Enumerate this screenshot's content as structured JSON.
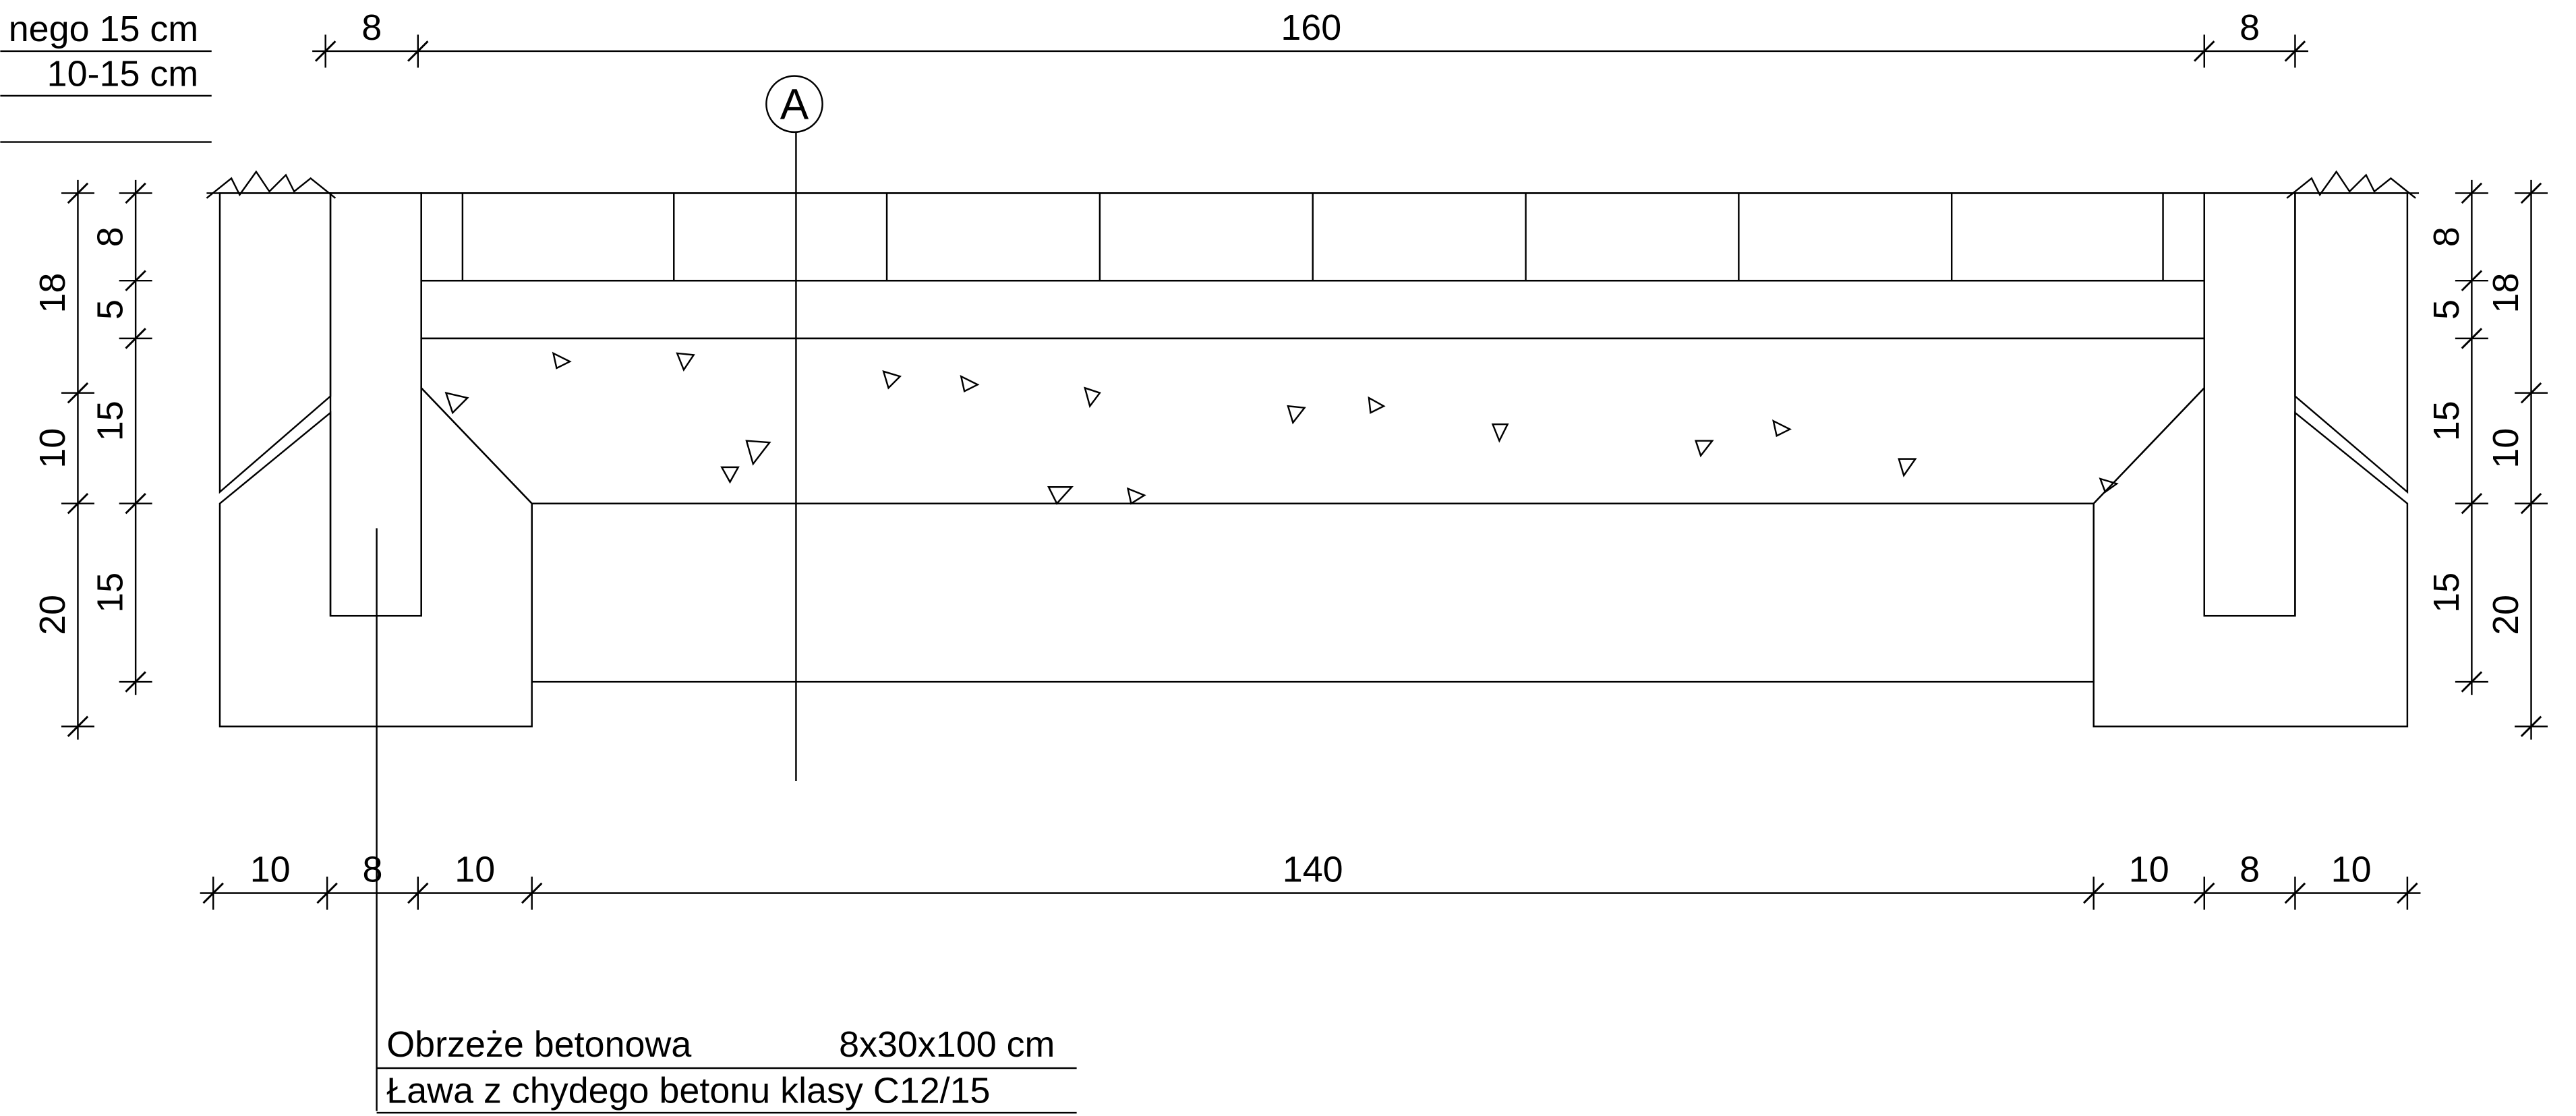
{
  "legend_top": [
    "nego 15 cm",
    "10-15 cm"
  ],
  "marker": "A",
  "dims_top": [
    "8",
    "160",
    "8"
  ],
  "dims_bottom": [
    "10",
    "8",
    "10",
    "140",
    "10",
    "8",
    "10"
  ],
  "dims_left_outer": [
    "18",
    "10",
    "20"
  ],
  "dims_left_inner": [
    "8",
    "5",
    "15",
    "15"
  ],
  "dims_right_inner": [
    "8",
    "5",
    "15",
    "15"
  ],
  "dims_right_outer": [
    "18",
    "10",
    "20"
  ],
  "notes": {
    "curb": "Obrzeże betonowa",
    "curb_size": "8x30x100 cm",
    "bench": "Ława z chydego betonu klasy C12/15"
  }
}
